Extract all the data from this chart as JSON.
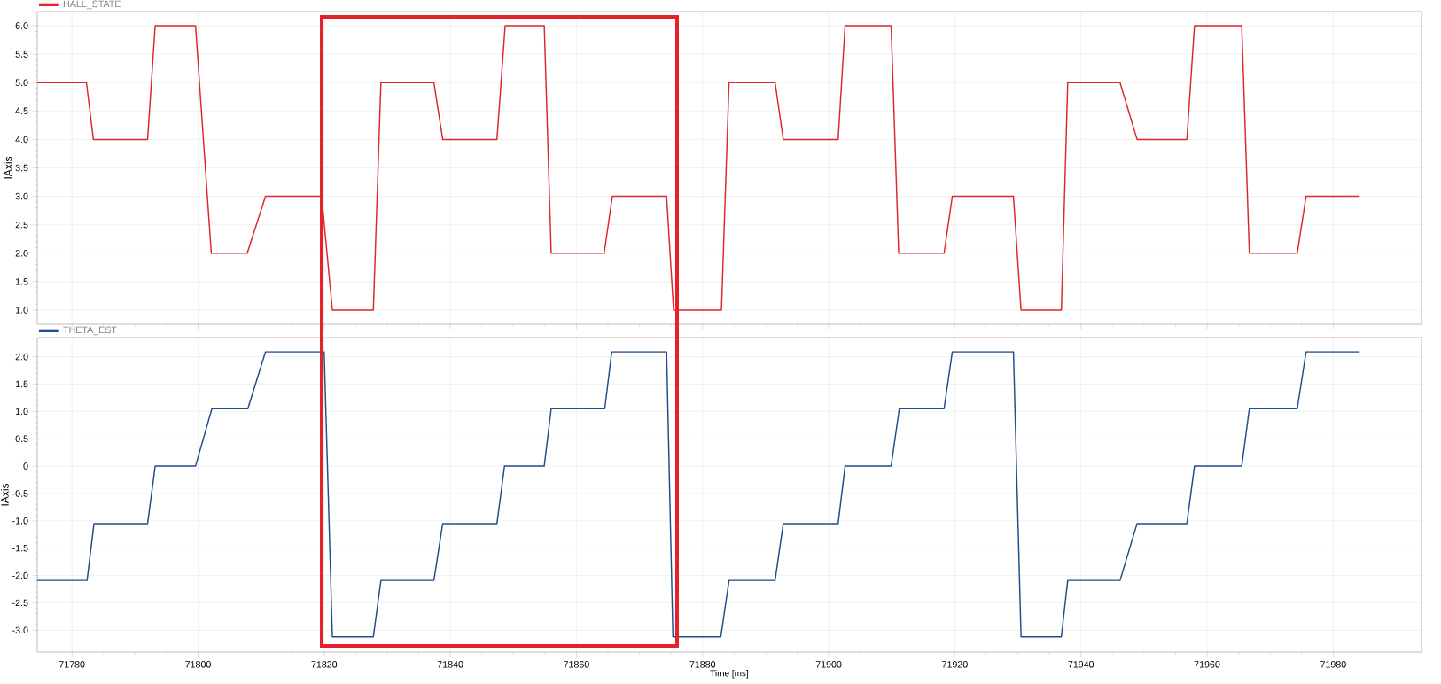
{
  "chart_data": [
    {
      "type": "line",
      "ylabel": "IAxis",
      "legend": "top left",
      "grid": true,
      "tick_labels": "y",
      "xlim": [
        71774.5,
        71994
      ],
      "xticks": [
        71780,
        71800,
        71820,
        71840,
        71860,
        71880,
        71900,
        71920,
        71940,
        71960,
        71980
      ],
      "ylim": [
        0.75,
        6.25
      ],
      "yticks": [
        {
          "value": 1,
          "label": "1.0"
        },
        1.5,
        {
          "value": 2,
          "label": "2.0"
        },
        2.5,
        {
          "value": 3,
          "label": "3.0"
        },
        3.5,
        {
          "value": 4,
          "label": "4.0"
        },
        4.5,
        {
          "value": 5,
          "label": "5.0"
        },
        5.5,
        {
          "value": 6,
          "label": "6.0"
        }
      ],
      "x": [
        71774.5,
        71782.3,
        71783.4,
        71792,
        71793.2,
        71799.6,
        71802.1,
        71807.8,
        71810.7,
        71819.6,
        71821.3,
        71827.8,
        71829,
        71837.4,
        71838.8,
        71847.4,
        71848.7,
        71854.9,
        71856,
        71864.4,
        71865.7,
        71874.3,
        71875.4,
        71883,
        71884.2,
        71891.5,
        71892.8,
        71901.5,
        71902.6,
        71909.9,
        71911.1,
        71918.3,
        71919.6,
        71929.3,
        71930.5,
        71936.9,
        71937.9,
        71946.2,
        71948.9,
        71956.8,
        71958,
        71965.5,
        71966.7,
        71974.3,
        71975.7,
        71984.2
      ],
      "series": [
        {
          "name": "HALL_STATE",
          "color": "#e0262a",
          "values": [
            5,
            5,
            4,
            4,
            6,
            6,
            2,
            2,
            3,
            3,
            1,
            1,
            5,
            5,
            4,
            4,
            6,
            6,
            2,
            2,
            3,
            3,
            1,
            1,
            5,
            5,
            4,
            4,
            6,
            6,
            2,
            2,
            3,
            3,
            1,
            1,
            5,
            5,
            4,
            4,
            6,
            6,
            2,
            2,
            3,
            3
          ]
        }
      ]
    },
    {
      "type": "line",
      "xlabel": "Time [ms]",
      "ylabel": "IAxis",
      "legend": "top left",
      "grid": true,
      "xlim": [
        71774.5,
        71994
      ],
      "xticks": [
        71780,
        71800,
        71820,
        71840,
        71860,
        71880,
        71900,
        71920,
        71940,
        71960,
        71980
      ],
      "ylim": [
        -3.4,
        2.35
      ],
      "yticks": [
        {
          "value": -3,
          "label": "-3.0"
        },
        -2.5,
        {
          "value": -2,
          "label": "-2.0"
        },
        -1.5,
        {
          "value": -1,
          "label": "-1.0"
        },
        -0.5,
        0,
        0.5,
        {
          "value": 1,
          "label": "1.0"
        },
        1.5,
        {
          "value": 2,
          "label": "2.0"
        }
      ],
      "x": [
        71774.5,
        71782.4,
        71783.5,
        71792,
        71793.2,
        71799.6,
        71802.2,
        71807.9,
        71810.7,
        71820,
        71821.3,
        71827.8,
        71829,
        71837.4,
        71838.8,
        71847.4,
        71848.6,
        71854.9,
        71856,
        71864.5,
        71865.6,
        71874.3,
        71875.3,
        71882.9,
        71884.2,
        71891.5,
        71892.8,
        71901.5,
        71902.6,
        71909.9,
        71911.2,
        71918.3,
        71919.6,
        71929.3,
        71930.5,
        71936.9,
        71937.9,
        71946.2,
        71948.9,
        71956.8,
        71958,
        71965.5,
        71966.7,
        71974.3,
        71975.7,
        71984.2
      ],
      "series": [
        {
          "name": "THETA_EST",
          "color": "#1f4e8c",
          "values": [
            -2.09,
            -2.09,
            -1.05,
            -1.05,
            0,
            0,
            1.05,
            1.05,
            2.09,
            2.09,
            -3.12,
            -3.12,
            -2.09,
            -2.09,
            -1.05,
            -1.05,
            0,
            0,
            1.05,
            1.05,
            2.09,
            2.09,
            -3.12,
            -3.12,
            -2.09,
            -2.09,
            -1.05,
            -1.05,
            0,
            0,
            1.05,
            1.05,
            2.09,
            2.09,
            -3.12,
            -3.12,
            -2.09,
            -2.09,
            -1.05,
            -1.05,
            0,
            0,
            1.05,
            1.05,
            2.09,
            2.09
          ]
        }
      ]
    }
  ]
}
